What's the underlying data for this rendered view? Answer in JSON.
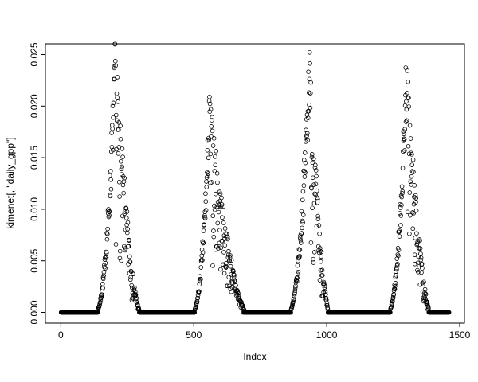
{
  "figure": {
    "background": "#ffffff",
    "foreground": "#000000"
  },
  "chart_data": {
    "type": "scatter",
    "title": "",
    "xlabel": "Index",
    "ylabel": "kimenet[, \"daily_gpp\"]",
    "marker": "open-circle",
    "marker_color": "#000000",
    "grid": false,
    "legend": "none",
    "xlim": [
      -58,
      1518
    ],
    "ylim": [
      -0.00104,
      0.02604
    ],
    "x_ticks": [
      0,
      500,
      1000,
      1500
    ],
    "y_ticks": [
      0.0,
      0.005,
      0.01,
      0.015,
      0.02,
      0.025
    ],
    "n_points": 1460,
    "baseline_value": 0.0,
    "zero_segments": [
      [
        1,
        130
      ],
      [
        300,
        495
      ],
      [
        700,
        855
      ],
      [
        1010,
        1230
      ],
      [
        1390,
        1460
      ]
    ],
    "seasons": [
      {
        "start": 130,
        "peak_index": 205,
        "end": 300,
        "peak_value": 0.0255
      },
      {
        "start": 495,
        "peak_index": 560,
        "end": 700,
        "peak_value": 0.0205
      },
      {
        "start": 855,
        "peak_index": 935,
        "end": 1010,
        "peak_value": 0.0255
      },
      {
        "start": 1230,
        "peak_index": 1300,
        "end": 1390,
        "peak_value": 0.0245
      }
    ],
    "key_points": [
      {
        "x": 205,
        "y": 0.0255,
        "note": "season-1 peak"
      },
      {
        "x": 560,
        "y": 0.0205,
        "note": "season-2 peak"
      },
      {
        "x": 935,
        "y": 0.0255,
        "note": "season-3 peak"
      },
      {
        "x": 1300,
        "y": 0.0245,
        "note": "season-4 peak"
      }
    ],
    "seed": 7
  }
}
